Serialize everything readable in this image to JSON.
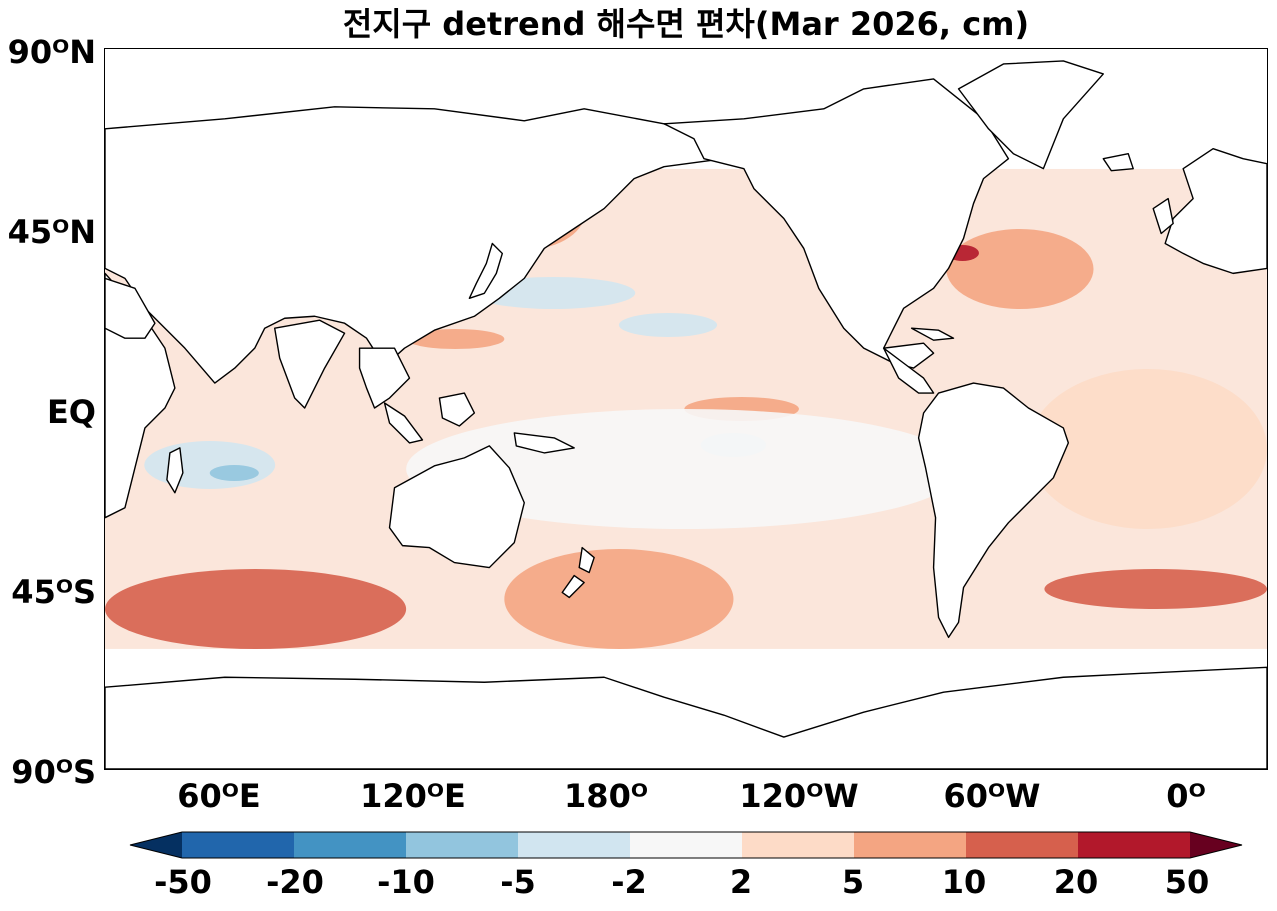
{
  "title": "전지구 detrend 해수면 편차(Mar 2026, cm)",
  "lat_axis": {
    "labels": [
      {
        "text": "90ᴼN",
        "lat": 90
      },
      {
        "text": "45ᴼN",
        "lat": 45
      },
      {
        "text": "EQ",
        "lat": 0
      },
      {
        "text": "45ᴼS",
        "lat": -45
      },
      {
        "text": "90ᴼS",
        "lat": -90
      }
    ],
    "range": [
      -90,
      90
    ]
  },
  "lon_axis": {
    "labels": [
      {
        "text": "60ᴼE",
        "lon": 60
      },
      {
        "text": "120ᴼE",
        "lon": 120
      },
      {
        "text": "180ᴼ",
        "lon": 180
      },
      {
        "text": "120ᴼW",
        "lon": 240
      },
      {
        "text": "60ᴼW",
        "lon": 300
      },
      {
        "text": "0ᴼ",
        "lon": 360
      }
    ],
    "range_east": [
      28,
      383
    ]
  },
  "data_extent": {
    "lat_max": 60,
    "lat_min": -60
  },
  "colorbar": {
    "levels": [
      "-50",
      "-20",
      "-10",
      "-5",
      "-2",
      "2",
      "5",
      "10",
      "20",
      "50"
    ],
    "colors": [
      "#2166ac",
      "#4393c3",
      "#92c5de",
      "#d1e5f0",
      "#f7f7f7",
      "#fddbc7",
      "#f4a582",
      "#d6604d",
      "#b2182b"
    ],
    "extend_low_color": "#053061",
    "extend_high_color": "#67001f"
  },
  "chart_data": {
    "type": "heatmap",
    "title": "전지구 detrend 해수면 편차(Mar 2026, cm)",
    "units": "cm",
    "x_range_lon_east": [
      28,
      383
    ],
    "y_range_lat": [
      -90,
      90
    ],
    "data_lat_range": [
      -60,
      60
    ],
    "anomaly_regions_cm": [
      {
        "lon": [
          140,
          175
        ],
        "lat": [
          40,
          60
        ],
        "value": 5
      },
      {
        "lon": [
          140,
          152
        ],
        "lat": [
          38,
          42
        ],
        "value": 20
      },
      {
        "lon": [
          140,
          190
        ],
        "lat": [
          25,
          33
        ],
        "value": -5
      },
      {
        "lon": [
          185,
          215
        ],
        "lat": [
          18,
          24
        ],
        "value": -5
      },
      {
        "lon": [
          120,
          150
        ],
        "lat": [
          15,
          20
        ],
        "value": 5
      },
      {
        "lon": [
          205,
          240
        ],
        "lat": [
          -3,
          3
        ],
        "value": 5
      },
      {
        "lon": [
          210,
          230
        ],
        "lat": [
          -12,
          -6
        ],
        "value": -5
      },
      {
        "lon": [
          40,
          80
        ],
        "lat": [
          -20,
          -8
        ],
        "value": -5
      },
      {
        "lon": [
          60,
          75
        ],
        "lat": [
          -18,
          -14
        ],
        "value": -10
      },
      {
        "lon": [
          285,
          330
        ],
        "lat": [
          25,
          45
        ],
        "value": 5
      },
      {
        "lon": [
          285,
          295
        ],
        "lat": [
          37,
          41
        ],
        "value": 20
      },
      {
        "lon": [
          150,
          220
        ],
        "lat": [
          -60,
          -35
        ],
        "value": 5
      },
      {
        "lon": [
          28,
          120
        ],
        "lat": [
          -60,
          -40
        ],
        "value": 10
      },
      {
        "lon": [
          315,
          383
        ],
        "lat": [
          -50,
          -40
        ],
        "value": 10
      },
      {
        "lon": [
          120,
          290
        ],
        "lat": [
          -30,
          0
        ],
        "value": -2
      },
      {
        "lon": [
          310,
          383
        ],
        "lat": [
          -30,
          10
        ],
        "value": 2
      }
    ]
  }
}
